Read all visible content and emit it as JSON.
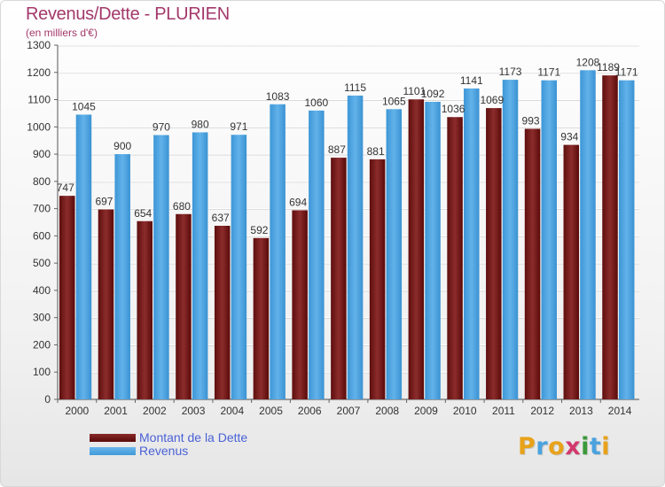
{
  "header": {
    "title": "Revenus/Dette - PLURIEN",
    "subtitle": "(en milliers d'€)"
  },
  "legend": {
    "debt_label": "Montant de la Dette",
    "revenue_label": "Revenus"
  },
  "logo": {
    "text": "Proxiti",
    "letters": [
      {
        "char": "P",
        "color": "#e8a21a"
      },
      {
        "char": "r",
        "color": "#4aa3df"
      },
      {
        "char": "o",
        "color": "#e8a21a"
      },
      {
        "char": "x",
        "color": "#d23a6e"
      },
      {
        "char": "i",
        "color": "#3a9a3a"
      },
      {
        "char": "t",
        "color": "#4aa3df"
      },
      {
        "char": "i",
        "color": "#e8a21a"
      }
    ]
  },
  "chart_data": {
    "type": "bar",
    "title": "Revenus/Dette - PLURIEN",
    "subtitle": "(en milliers d'€)",
    "categories": [
      "2000",
      "2001",
      "2002",
      "2003",
      "2004",
      "2005",
      "2006",
      "2007",
      "2008",
      "2009",
      "2010",
      "2011",
      "2012",
      "2013",
      "2014"
    ],
    "series": [
      {
        "name": "Montant de la Dette",
        "color": "#7a1a1a",
        "values": [
          747,
          697,
          654,
          680,
          637,
          592,
          694,
          887,
          881,
          1101,
          1036,
          1069,
          993,
          934,
          1189
        ]
      },
      {
        "name": "Revenus",
        "color": "#4aa3e0",
        "values": [
          1045,
          900,
          970,
          980,
          971,
          1083,
          1060,
          1115,
          1065,
          1092,
          1141,
          1173,
          1171,
          1208,
          1171
        ]
      }
    ],
    "ylim": [
      0,
      1300
    ],
    "yticks": [
      0,
      100,
      200,
      300,
      400,
      500,
      600,
      700,
      800,
      900,
      1000,
      1100,
      1200,
      1300
    ],
    "grid": true,
    "legend_position": "bottom-left"
  }
}
